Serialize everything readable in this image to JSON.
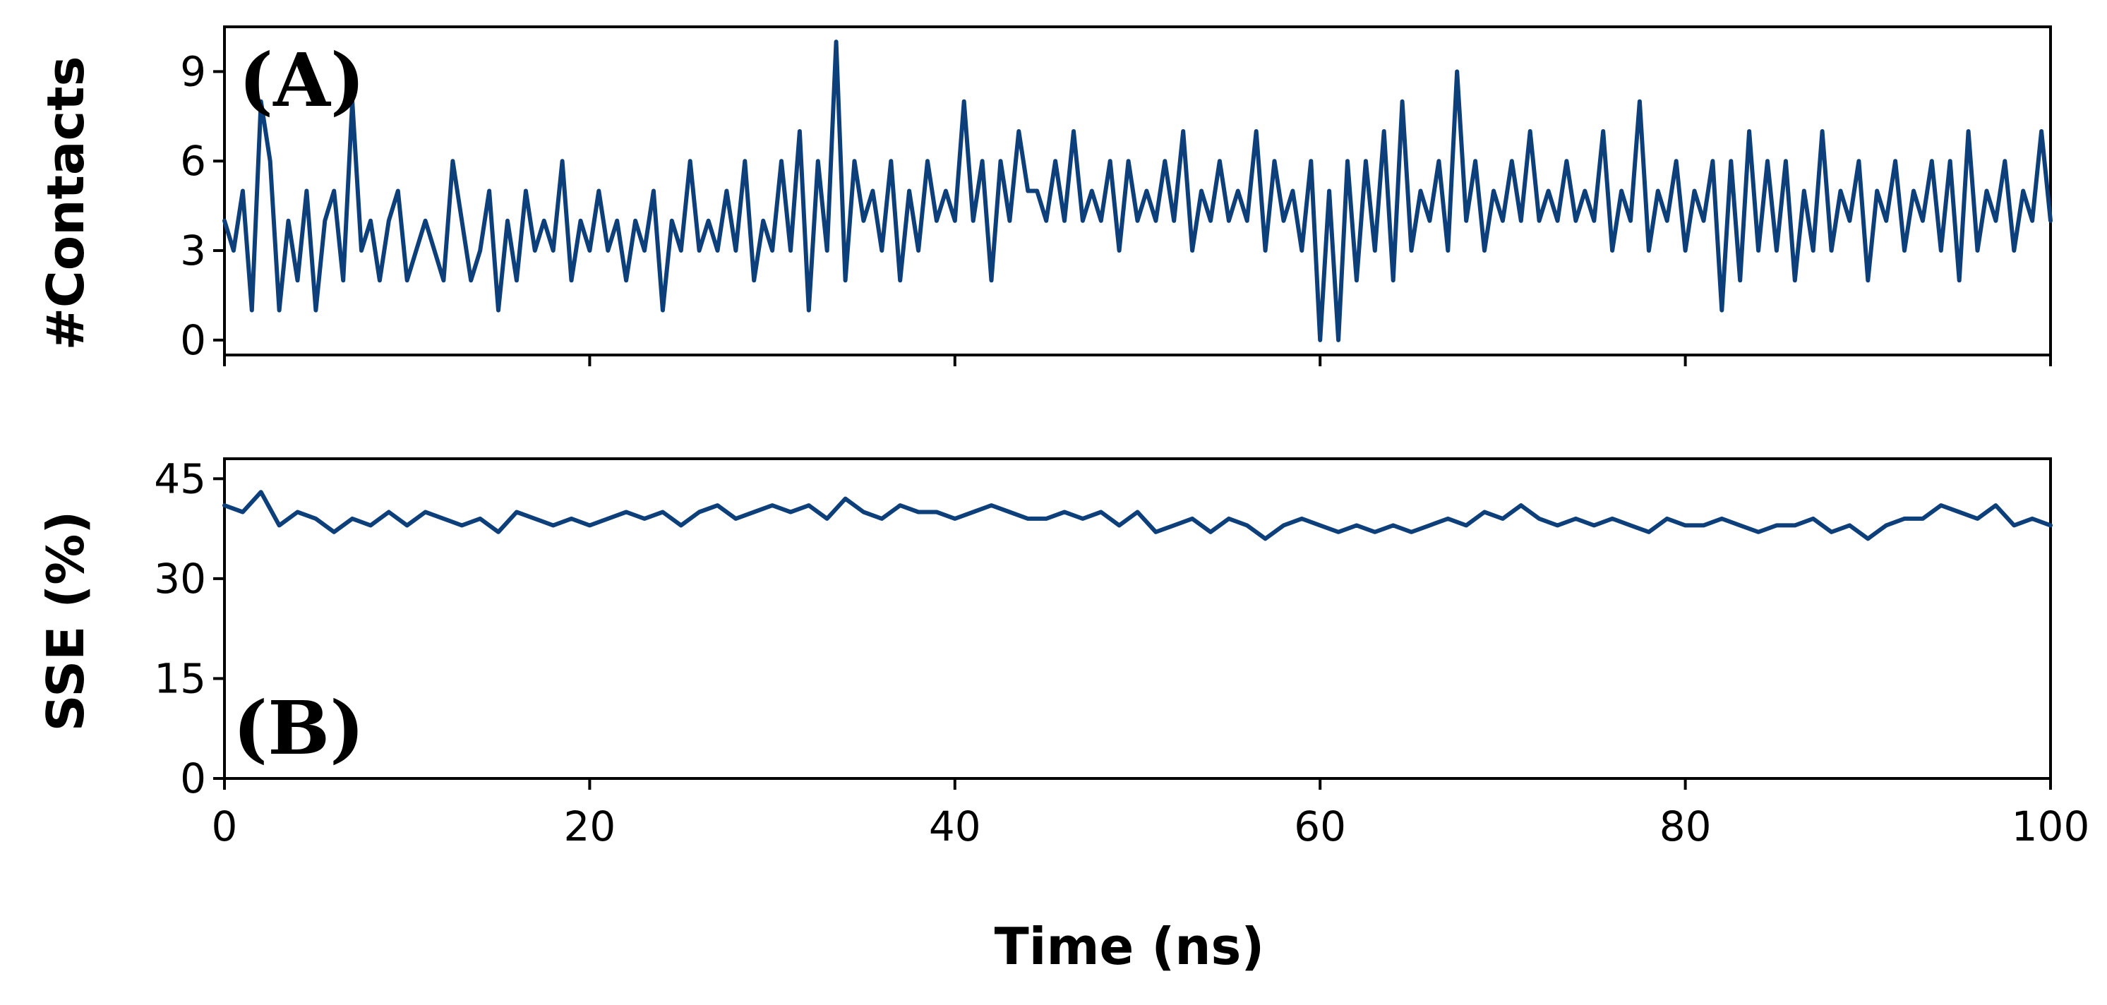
{
  "chart_data": [
    {
      "type": "line",
      "panel_label": "(A)",
      "ylabel": "#Contacts",
      "xlabel": "",
      "xlim": [
        0,
        100
      ],
      "ylim": [
        -0.5,
        10.5
      ],
      "yticks": [
        0,
        3,
        6,
        9
      ],
      "ytick_labels": [
        "0",
        "3",
        "6",
        "9"
      ],
      "xticks": [
        0,
        20,
        40,
        60,
        80,
        100
      ],
      "xtick_labels_visible": false,
      "series_color": "#0d3f7a",
      "series": [
        {
          "x": [
            0,
            0.5,
            1,
            1.5,
            2,
            2.5,
            3,
            3.5,
            4,
            4.5,
            5,
            5.5,
            6,
            6.5,
            7,
            7.5,
            8,
            8.5,
            9,
            9.5,
            10,
            10.5,
            11,
            11.5,
            12,
            12.5,
            13,
            13.5,
            14,
            14.5,
            15,
            15.5,
            16,
            16.5,
            17,
            17.5,
            18,
            18.5,
            19,
            19.5,
            20,
            20.5,
            21,
            21.5,
            22,
            22.5,
            23,
            23.5,
            24,
            24.5,
            25,
            25.5,
            26,
            26.5,
            27,
            27.5,
            28,
            28.5,
            29,
            29.5,
            30,
            30.5,
            31,
            31.5,
            32,
            32.5,
            33,
            33.5,
            34,
            34.5,
            35,
            35.5,
            36,
            36.5,
            37,
            37.5,
            38,
            38.5,
            39,
            39.5,
            40,
            40.5,
            41,
            41.5,
            42,
            42.5,
            43,
            43.5,
            44,
            44.5,
            45,
            45.5,
            46,
            46.5,
            47,
            47.5,
            48,
            48.5,
            49,
            49.5,
            50,
            50.5,
            51,
            51.5,
            52,
            52.5,
            53,
            53.5,
            54,
            54.5,
            55,
            55.5,
            56,
            56.5,
            57,
            57.5,
            58,
            58.5,
            59,
            59.5,
            60,
            60.5,
            61,
            61.5,
            62,
            62.5,
            63,
            63.5,
            64,
            64.5,
            65,
            65.5,
            66,
            66.5,
            67,
            67.5,
            68,
            68.5,
            69,
            69.5,
            70,
            70.5,
            71,
            71.5,
            72,
            72.5,
            73,
            73.5,
            74,
            74.5,
            75,
            75.5,
            76,
            76.5,
            77,
            77.5,
            78,
            78.5,
            79,
            79.5,
            80,
            80.5,
            81,
            81.5,
            82,
            82.5,
            83,
            83.5,
            84,
            84.5,
            85,
            85.5,
            86,
            86.5,
            87,
            87.5,
            88,
            88.5,
            89,
            89.5,
            90,
            90.5,
            91,
            91.5,
            92,
            92.5,
            93,
            93.5,
            94,
            94.5,
            95,
            95.5,
            96,
            96.5,
            97,
            97.5,
            98,
            98.5,
            99,
            99.5,
            100
          ],
          "values": [
            4,
            3,
            5,
            1,
            8,
            6,
            1,
            4,
            2,
            5,
            1,
            4,
            5,
            2,
            8,
            3,
            4,
            2,
            4,
            5,
            2,
            3,
            4,
            3,
            2,
            6,
            4,
            2,
            3,
            5,
            1,
            4,
            2,
            5,
            3,
            4,
            3,
            6,
            2,
            4,
            3,
            5,
            3,
            4,
            2,
            4,
            3,
            5,
            1,
            4,
            3,
            6,
            3,
            4,
            3,
            5,
            3,
            6,
            2,
            4,
            3,
            6,
            3,
            7,
            1,
            6,
            3,
            10,
            2,
            6,
            4,
            5,
            3,
            6,
            2,
            5,
            3,
            6,
            4,
            5,
            4,
            8,
            4,
            6,
            2,
            6,
            4,
            7,
            5,
            5,
            4,
            6,
            4,
            7,
            4,
            5,
            4,
            6,
            3,
            6,
            4,
            5,
            4,
            6,
            4,
            7,
            3,
            5,
            4,
            6,
            4,
            5,
            4,
            7,
            3,
            6,
            4,
            5,
            3,
            6,
            0,
            5,
            0,
            6,
            2,
            6,
            3,
            7,
            2,
            8,
            3,
            5,
            4,
            6,
            3,
            9,
            4,
            6,
            3,
            5,
            4,
            6,
            4,
            7,
            4,
            5,
            4,
            6,
            4,
            5,
            4,
            7,
            3,
            5,
            4,
            8,
            3,
            5,
            4,
            6,
            3,
            5,
            4,
            6,
            1,
            6,
            2,
            7,
            3,
            6,
            3,
            6,
            2,
            5,
            3,
            7,
            3,
            5,
            4,
            6,
            2,
            5,
            4,
            6,
            3,
            5,
            4,
            6,
            3,
            6,
            2,
            7,
            3,
            5,
            4,
            6,
            3,
            5,
            4,
            7,
            4
          ]
        }
      ]
    },
    {
      "type": "line",
      "panel_label": "(B)",
      "ylabel": "SSE (%)",
      "xlabel": "Time (ns)",
      "xlim": [
        0,
        100
      ],
      "ylim": [
        0,
        48
      ],
      "yticks": [
        0,
        15,
        30,
        45
      ],
      "ytick_labels": [
        "0",
        "15",
        "30",
        "45"
      ],
      "xticks": [
        0,
        20,
        40,
        60,
        80,
        100
      ],
      "xtick_labels": [
        "0",
        "20",
        "40",
        "60",
        "80",
        "100"
      ],
      "series_color": "#0d3f7a",
      "series": [
        {
          "x": [
            0,
            1,
            2,
            3,
            4,
            5,
            6,
            7,
            8,
            9,
            10,
            11,
            12,
            13,
            14,
            15,
            16,
            17,
            18,
            19,
            20,
            21,
            22,
            23,
            24,
            25,
            26,
            27,
            28,
            29,
            30,
            31,
            32,
            33,
            34,
            35,
            36,
            37,
            38,
            39,
            40,
            41,
            42,
            43,
            44,
            45,
            46,
            47,
            48,
            49,
            50,
            51,
            52,
            53,
            54,
            55,
            56,
            57,
            58,
            59,
            60,
            61,
            62,
            63,
            64,
            65,
            66,
            67,
            68,
            69,
            70,
            71,
            72,
            73,
            74,
            75,
            76,
            77,
            78,
            79,
            80,
            81,
            82,
            83,
            84,
            85,
            86,
            87,
            88,
            89,
            90,
            91,
            92,
            93,
            94,
            95,
            96,
            97,
            98,
            99,
            100
          ],
          "values": [
            41,
            40,
            43,
            38,
            40,
            39,
            37,
            39,
            38,
            40,
            38,
            40,
            39,
            38,
            39,
            37,
            40,
            39,
            38,
            39,
            38,
            39,
            40,
            39,
            40,
            38,
            40,
            41,
            39,
            40,
            41,
            40,
            41,
            39,
            42,
            40,
            39,
            41,
            40,
            40,
            39,
            40,
            41,
            40,
            39,
            39,
            40,
            39,
            40,
            38,
            40,
            37,
            38,
            39,
            37,
            39,
            38,
            36,
            38,
            39,
            38,
            37,
            38,
            37,
            38,
            37,
            38,
            39,
            38,
            40,
            39,
            41,
            39,
            38,
            39,
            38,
            39,
            38,
            37,
            39,
            38,
            38,
            39,
            38,
            37,
            38,
            38,
            39,
            37,
            38,
            36,
            38,
            39,
            39,
            41,
            40,
            39,
            41,
            38,
            39,
            38
          ]
        }
      ]
    }
  ]
}
